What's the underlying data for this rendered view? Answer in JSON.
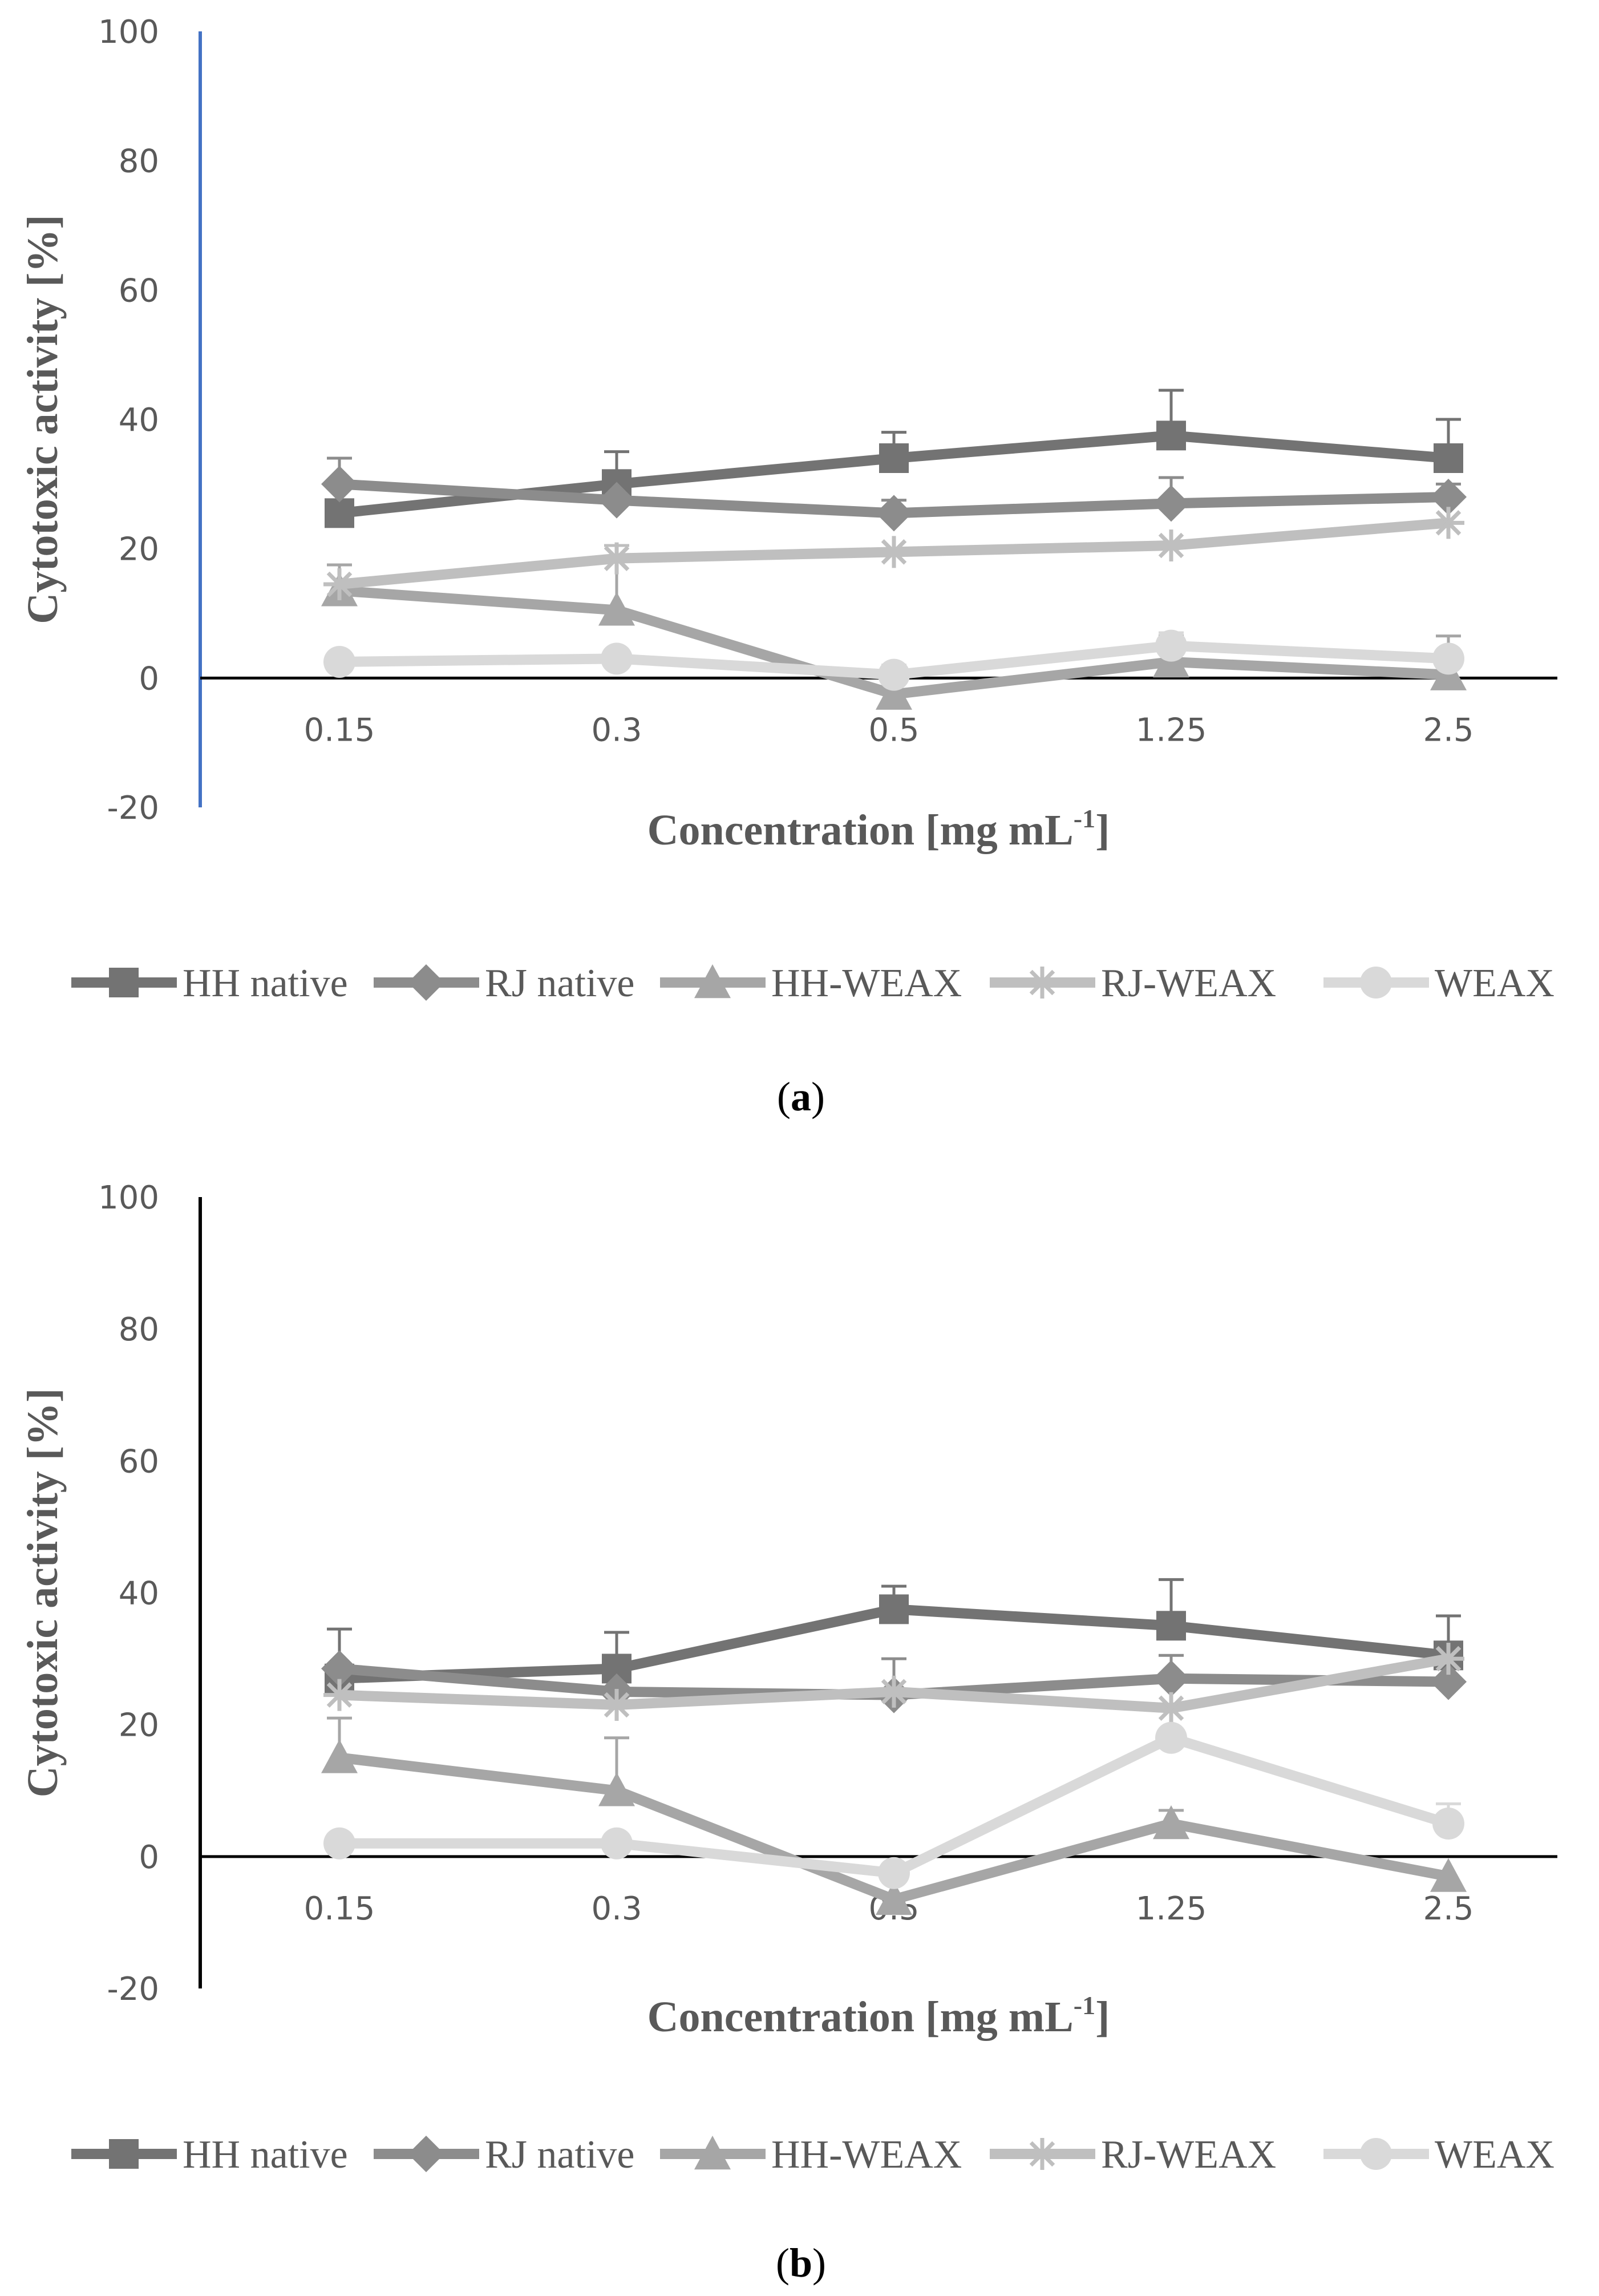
{
  "chart_data": [
    {
      "panel": "a",
      "type": "line",
      "categories": [
        "0.15",
        "0.3",
        "0.5",
        "1.25",
        "2.5"
      ],
      "ylabel": "Cytotoxic activity [%]",
      "xlabel": "Concentration [mg mL",
      "xlabel_sup": "-1",
      "xlabel_end": "]",
      "ylim": [
        -20,
        100
      ],
      "yticks": [
        "100",
        "80",
        "60",
        "40",
        "20",
        "0",
        "-20"
      ],
      "grid": false,
      "legend_position": "bottom",
      "series": [
        {
          "name": "HH native",
          "marker": "square",
          "color": "#737373",
          "values": [
            25.5,
            30,
            34,
            37.5,
            34
          ],
          "error": [
            0,
            5,
            4,
            7,
            6
          ]
        },
        {
          "name": "RJ native",
          "marker": "diamond",
          "color": "#8c8c8c",
          "values": [
            30,
            27.5,
            25.5,
            27,
            28
          ],
          "error": [
            4,
            0,
            2,
            4,
            2
          ]
        },
        {
          "name": "HH-WEAX",
          "marker": "triangle",
          "color": "#a6a6a6",
          "values": [
            13.5,
            10.5,
            -2.5,
            2.5,
            0.5
          ],
          "error": [
            4,
            10,
            4,
            4,
            6
          ]
        },
        {
          "name": "RJ-WEAX",
          "marker": "star",
          "color": "#bfbfbf",
          "values": [
            14.5,
            18.5,
            19.5,
            20.5,
            24
          ],
          "error": [
            0,
            2,
            0,
            0,
            0
          ]
        },
        {
          "name": "WEAX",
          "marker": "circle",
          "color": "#d9d9d9",
          "values": [
            2.5,
            3,
            0.5,
            5,
            3
          ],
          "error": [
            0,
            0,
            1.5,
            2,
            0
          ]
        }
      ]
    },
    {
      "panel": "b",
      "type": "line",
      "categories": [
        "0.15",
        "0.3",
        "0.5",
        "1.25",
        "2.5"
      ],
      "ylabel": "Cytotoxic activity [%]",
      "xlabel": "Concentration [mg mL",
      "xlabel_sup": "-1",
      "xlabel_end": "]",
      "ylim": [
        -20,
        100
      ],
      "yticks": [
        "100",
        "80",
        "60",
        "40",
        "20",
        "0",
        "-20"
      ],
      "grid": false,
      "legend_position": "bottom",
      "series": [
        {
          "name": "HH native",
          "marker": "square",
          "color": "#737373",
          "values": [
            27,
            28.5,
            37.5,
            35,
            30.5
          ],
          "error": [
            7.5,
            5.5,
            3.5,
            7,
            6
          ]
        },
        {
          "name": "RJ native",
          "marker": "diamond",
          "color": "#8c8c8c",
          "values": [
            28.5,
            25,
            24.5,
            27,
            26.5
          ],
          "error": [
            0,
            0,
            5.5,
            3.5,
            0
          ]
        },
        {
          "name": "HH-WEAX",
          "marker": "triangle",
          "color": "#a6a6a6",
          "values": [
            15,
            10,
            -6.5,
            5,
            -3
          ],
          "error": [
            6,
            8,
            0,
            2,
            0
          ]
        },
        {
          "name": "RJ-WEAX",
          "marker": "star",
          "color": "#bfbfbf",
          "values": [
            24.5,
            23,
            25,
            22.5,
            30
          ],
          "error": [
            0,
            0,
            0,
            0,
            0
          ]
        },
        {
          "name": "WEAX",
          "marker": "circle",
          "color": "#d9d9d9",
          "values": [
            2,
            2,
            -2.5,
            18,
            5
          ],
          "error": [
            0,
            0,
            0,
            0,
            3
          ]
        }
      ]
    }
  ],
  "panel_labels": {
    "a": {
      "open": "(",
      "letter": "a",
      "close": ")"
    },
    "b": {
      "open": "(",
      "letter": "b",
      "close": ")"
    }
  },
  "axis_colors": {
    "panel_a_yaxis": "#4472c4",
    "panel_b_yaxis": "#000000",
    "zero_line": "#000000"
  }
}
